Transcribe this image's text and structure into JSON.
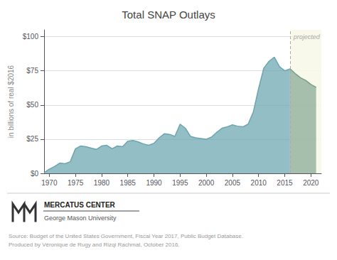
{
  "chart_data": {
    "type": "area",
    "title": "Total SNAP Outlays",
    "ylabel": "in billions of real $2016",
    "series": [
      {
        "color": "#6aa5b0",
        "x": [
          1969,
          1970,
          1971,
          1972,
          1973,
          1974,
          1975,
          1976,
          1977,
          1978,
          1979,
          1980,
          1981,
          1982,
          1983,
          1984,
          1985,
          1986,
          1987,
          1988,
          1989,
          1990,
          1991,
          1992,
          1993,
          1994,
          1995,
          1996,
          1997,
          1998,
          1999,
          2000,
          2001,
          2002,
          2003,
          2004,
          2005,
          2006,
          2007,
          2008,
          2009,
          2010,
          2011,
          2012,
          2013,
          2014,
          2015,
          2016
        ],
        "values": [
          0.5,
          3.0,
          5.0,
          7.5,
          7.0,
          8.5,
          18.0,
          20.0,
          19.5,
          18.5,
          17.5,
          20.0,
          20.5,
          18.0,
          20.0,
          19.5,
          23.5,
          24.0,
          23.0,
          21.5,
          20.5,
          22.0,
          26.0,
          29.0,
          28.5,
          27.0,
          36.0,
          33.0,
          27.0,
          26.0,
          25.5,
          25.0,
          26.5,
          30.0,
          33.0,
          34.0,
          35.5,
          34.5,
          34.0,
          36.0,
          45.0,
          62.0,
          77.0,
          82.0,
          85.0,
          78.0,
          75.0,
          76.5
        ]
      },
      {
        "color": "#7a9e8a",
        "x": [
          2016,
          2017,
          2018,
          2019,
          2020,
          2021
        ],
        "values": [
          76.5,
          73.0,
          70.0,
          68.0,
          65.0,
          63.0
        ]
      }
    ],
    "xlim": [
      1969,
      2022
    ],
    "xticks": [
      1970,
      1975,
      1980,
      1985,
      1990,
      1995,
      2000,
      2005,
      2010,
      2015,
      2020
    ],
    "ylim": [
      0,
      105
    ],
    "yticks": [
      {
        "value": 0,
        "label": "$0"
      },
      {
        "value": 25,
        "label": "$25"
      },
      {
        "value": 50,
        "label": "$50"
      },
      {
        "value": 75,
        "label": "$75"
      },
      {
        "value": 100,
        "label": "$100"
      }
    ],
    "grid": true,
    "annotations": [
      {
        "text": "projected",
        "x": 2016,
        "color": "#f8f8e8"
      },
      {
        "text": "MERCATUS CENTER"
      },
      {
        "text": "George Mason University"
      },
      {
        "text": "Source: Budget of the United States Government, Fiscal Year 2017, Public Budget Database.\nProduced by Véronique de Rugy and Rizqi Rachmat, October 2016."
      }
    ]
  }
}
